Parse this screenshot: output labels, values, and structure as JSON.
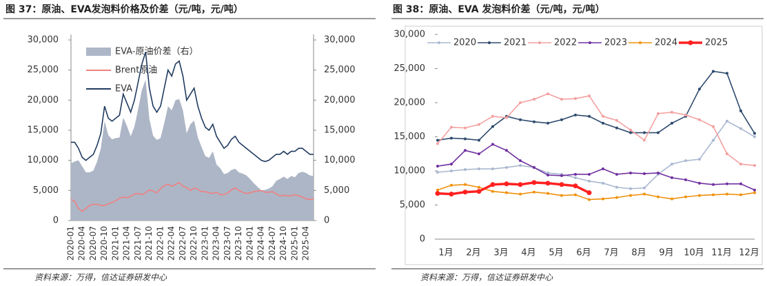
{
  "chart_data": [
    {
      "type": "line",
      "title": "图 37：原油、EVA发泡料价格及价差（元/吨，元/吨）",
      "source": "资料来源：万得，信达证券研发中心",
      "categories": [
        "2020-01",
        null,
        null,
        "2020-04",
        null,
        null,
        "2020-07",
        null,
        null,
        "2020-10",
        null,
        null,
        "2021-01",
        null,
        null,
        "2021-04",
        null,
        null,
        "2021-07",
        null,
        null,
        "2021-10",
        null,
        null,
        "2022-01",
        null,
        null,
        "2022-04",
        null,
        null,
        "2022-07",
        null,
        null,
        "2022-10",
        null,
        null,
        "2023-01",
        null,
        null,
        "2023-04",
        null,
        null,
        "2023-07",
        null,
        null,
        "2023-10",
        null,
        null,
        "2024-01",
        null,
        null,
        "2024-04",
        null,
        null,
        "2024-07",
        null,
        null,
        "2024-10",
        null,
        null,
        "2025-01",
        null,
        null,
        "2025-04",
        null,
        null
      ],
      "series": [
        {
          "name": "EVA-原油价差（右）",
          "type": "area",
          "axis": "y2",
          "color": "#adb6c6",
          "values": [
            9500,
            9800,
            10000,
            9000,
            8000,
            8000,
            8300,
            9800,
            12000,
            16500,
            14200,
            13500,
            13700,
            13800,
            17100,
            15700,
            14000,
            15600,
            18500,
            21700,
            23400,
            16900,
            14100,
            13400,
            13700,
            16200,
            19000,
            18300,
            20000,
            20200,
            18300,
            14500,
            16000,
            16600,
            13800,
            12200,
            10700,
            10400,
            11500,
            9300,
            8700,
            7700,
            7900,
            8400,
            8600,
            8000,
            7800,
            7500,
            6900,
            6200,
            5600,
            5000,
            5100,
            5300,
            5700,
            6600,
            6900,
            7300,
            6900,
            7400,
            7200,
            7900,
            8100,
            7900,
            7500,
            7400
          ]
        },
        {
          "name": "Brent原油",
          "type": "line",
          "color": "#f08080",
          "values": [
            3500,
            3200,
            2000,
            1500,
            2000,
            2500,
            2700,
            2700,
            2500,
            2500,
            2800,
            3000,
            3300,
            3700,
            3900,
            3800,
            4000,
            4400,
            4500,
            4300,
            4600,
            5100,
            4900,
            4600,
            5300,
            5800,
            6000,
            5700,
            6000,
            6300,
            5700,
            5500,
            5000,
            5400,
            5200,
            4800,
            4800,
            4600,
            4500,
            4700,
            4300,
            4300,
            4600,
            5100,
            5400,
            5000,
            4700,
            4500,
            4600,
            4800,
            4900,
            5000,
            4700,
            4700,
            4800,
            4400,
            4100,
            4200,
            4100,
            4100,
            4300,
            4100,
            3900,
            3600,
            3500,
            3600
          ]
        },
        {
          "name": "EVA",
          "type": "line",
          "color": "#1f3a5f",
          "values": [
            13000,
            13000,
            12000,
            10500,
            10000,
            10500,
            11000,
            12500,
            14500,
            19000,
            17000,
            16500,
            17000,
            17500,
            21000,
            19500,
            18000,
            20000,
            23000,
            26000,
            28000,
            22000,
            19000,
            18000,
            19000,
            22000,
            25000,
            24000,
            26000,
            26500,
            24000,
            20000,
            21000,
            22000,
            19000,
            17000,
            15500,
            15000,
            16000,
            14000,
            13000,
            12000,
            12500,
            13500,
            14000,
            13000,
            12500,
            12000,
            11500,
            11000,
            10500,
            10000,
            9800,
            10000,
            10500,
            11000,
            11000,
            11500,
            11000,
            11500,
            11500,
            12000,
            12000,
            11500,
            11000,
            11000
          ]
        }
      ],
      "ylim": [
        0,
        30000
      ],
      "yticks": [
        0,
        {
          "value": 5000,
          "label": "5,000"
        },
        {
          "value": 10000,
          "label": "10,000"
        },
        {
          "value": 15000,
          "label": "15,000"
        },
        {
          "value": 20000,
          "label": "20,000"
        },
        {
          "value": 25000,
          "label": "25,000"
        },
        {
          "value": 30000,
          "label": "30,000"
        }
      ],
      "y2lim": [
        0,
        30000
      ],
      "y2ticks": [
        0,
        {
          "value": 5000,
          "label": "5,000"
        },
        {
          "value": 10000,
          "label": "10,000"
        },
        {
          "value": 15000,
          "label": "15,000"
        },
        {
          "value": 20000,
          "label": "20,000"
        },
        {
          "value": 25000,
          "label": "25,000"
        },
        {
          "value": 30000,
          "label": "30,000"
        }
      ],
      "legend": "top-left",
      "grid": false
    },
    {
      "type": "line",
      "title": "图 38：原油、EVA 发泡料价差（元/吨，元/吨）",
      "source": "资料来源：万得，信达证券研发中心",
      "categories": [
        "1月",
        null,
        "2月",
        null,
        "3月",
        null,
        "4月",
        null,
        "5月",
        null,
        "6月",
        null,
        "7月",
        null,
        "8月",
        null,
        "9月",
        null,
        "10月",
        null,
        "11月",
        null,
        "12月",
        null
      ],
      "series": [
        {
          "name": "2020",
          "color": "#a9b8d0",
          "values": [
            9800,
            10000,
            10200,
            10300,
            10300,
            10500,
            10800,
            10500,
            9700,
            9500,
            9000,
            8500,
            8200,
            7600,
            7400,
            7500,
            9500,
            11000,
            11500,
            11700,
            14500,
            17300,
            16200,
            15000
          ]
        },
        {
          "name": "2021",
          "color": "#2e4a6e",
          "values": [
            14500,
            14800,
            14700,
            14500,
            16500,
            18000,
            17500,
            17200,
            17000,
            17500,
            18200,
            18000,
            17000,
            16300,
            15600,
            15600,
            15600,
            17000,
            18000,
            22000,
            24600,
            24300,
            18800,
            15500
          ]
        },
        {
          "name": "2022",
          "color": "#f4a0a0",
          "values": [
            14000,
            16400,
            16300,
            16800,
            18000,
            17800,
            20000,
            20500,
            21300,
            20500,
            20600,
            21000,
            18000,
            17400,
            16000,
            14500,
            18400,
            18600,
            18200,
            17500,
            16500,
            12500,
            11000,
            10800
          ]
        },
        {
          "name": "2023",
          "color": "#7030a0",
          "values": [
            10700,
            11000,
            13000,
            12500,
            13900,
            13000,
            11500,
            10500,
            9400,
            9300,
            9500,
            9500,
            10300,
            9500,
            9700,
            9600,
            9700,
            9000,
            8700,
            8200,
            8000,
            8100,
            8100,
            7200
          ]
        },
        {
          "name": "2024",
          "color": "#f0900a",
          "values": [
            7200,
            7900,
            8000,
            7600,
            7000,
            6800,
            6600,
            6900,
            6700,
            6400,
            6500,
            5800,
            5900,
            6100,
            6400,
            6600,
            6200,
            5900,
            6200,
            6400,
            6500,
            6600,
            6500,
            6800
          ]
        },
        {
          "name": "2025",
          "color": "#ff2020",
          "values": [
            6700,
            6600,
            6900,
            7000,
            8000,
            8100,
            8000,
            8300,
            8200,
            8000,
            7800,
            6800,
            null,
            null,
            null,
            null,
            null,
            null,
            null,
            null,
            null,
            null,
            null,
            null
          ]
        }
      ],
      "ylim": [
        0,
        30000
      ],
      "yticks": [
        0,
        {
          "value": 5000,
          "label": "5,000"
        },
        {
          "value": 10000,
          "label": "10,000"
        },
        {
          "value": 15000,
          "label": "15,000"
        },
        {
          "value": 20000,
          "label": "20,000"
        },
        {
          "value": 25000,
          "label": "25,000"
        },
        {
          "value": 30000,
          "label": "30,000"
        }
      ],
      "legend": "top",
      "grid": false
    }
  ]
}
